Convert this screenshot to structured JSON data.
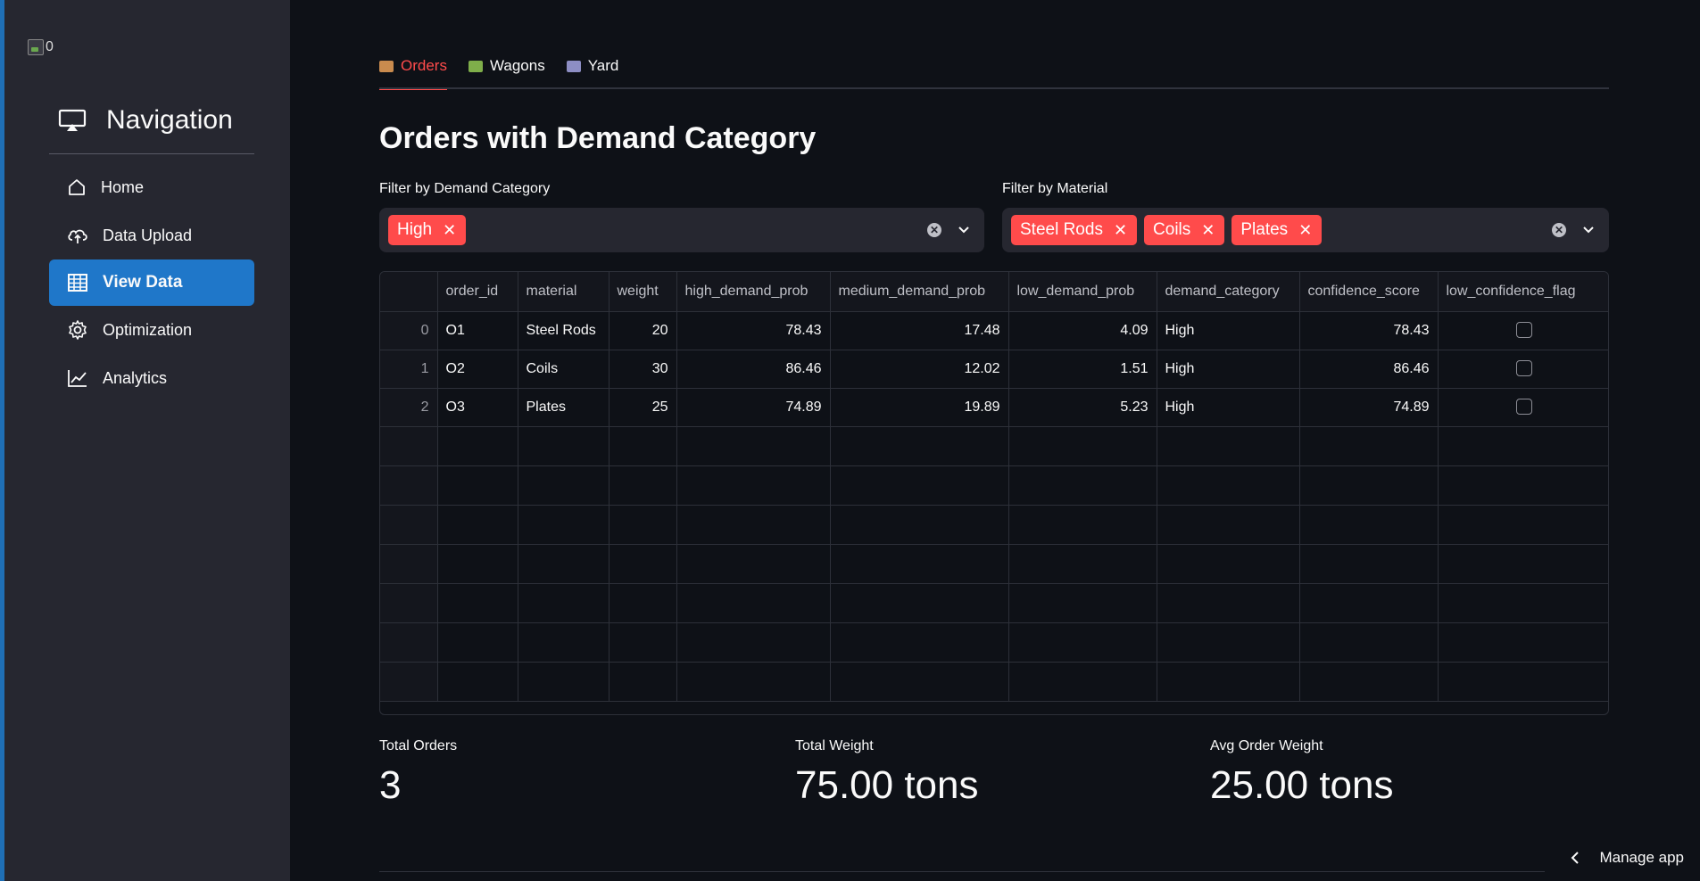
{
  "sidebar": {
    "logo_alt": "0",
    "nav_title": "Navigation",
    "items": [
      {
        "label": "Home",
        "icon": "home-icon"
      },
      {
        "label": "Data Upload",
        "icon": "cloud-upload-icon"
      },
      {
        "label": "View Data",
        "icon": "table-icon",
        "active": true
      },
      {
        "label": "Optimization",
        "icon": "gear-icon"
      },
      {
        "label": "Analytics",
        "icon": "chart-line-icon"
      }
    ]
  },
  "tabs": [
    {
      "label": "Orders",
      "icon": "package-icon",
      "active": true
    },
    {
      "label": "Wagons",
      "icon": "wagon-icon"
    },
    {
      "label": "Yard",
      "icon": "factory-icon"
    }
  ],
  "page_title": "Orders with Demand Category",
  "filters": {
    "demand": {
      "label": "Filter by Demand Category",
      "chips": [
        "High"
      ]
    },
    "material": {
      "label": "Filter by Material",
      "chips": [
        "Steel Rods",
        "Coils",
        "Plates"
      ]
    }
  },
  "table": {
    "columns": [
      "order_id",
      "material",
      "weight",
      "high_demand_prob",
      "medium_demand_prob",
      "low_demand_prob",
      "demand_category",
      "confidence_score",
      "low_confidence_flag"
    ],
    "rows": [
      {
        "index": "0",
        "order_id": "O1",
        "material": "Steel Rods",
        "weight": "20",
        "high_demand_prob": "78.43",
        "medium_demand_prob": "17.48",
        "low_demand_prob": "4.09",
        "demand_category": "High",
        "confidence_score": "78.43",
        "low_confidence_flag": false
      },
      {
        "index": "1",
        "order_id": "O2",
        "material": "Coils",
        "weight": "30",
        "high_demand_prob": "86.46",
        "medium_demand_prob": "12.02",
        "low_demand_prob": "1.51",
        "demand_category": "High",
        "confidence_score": "86.46",
        "low_confidence_flag": false
      },
      {
        "index": "2",
        "order_id": "O3",
        "material": "Plates",
        "weight": "25",
        "high_demand_prob": "74.89",
        "medium_demand_prob": "19.89",
        "low_demand_prob": "5.23",
        "demand_category": "High",
        "confidence_score": "74.89",
        "low_confidence_flag": false
      }
    ]
  },
  "metrics": [
    {
      "label": "Total Orders",
      "value": "3"
    },
    {
      "label": "Total Weight",
      "value": "75.00 tons"
    },
    {
      "label": "Avg Order Weight",
      "value": "25.00 tons"
    }
  ],
  "manage_app": "Manage app",
  "colors": {
    "accent": "#ff4b4b",
    "active_nav": "#1f77c9",
    "sidebar_bg": "#262730",
    "main_bg": "#0e1117"
  }
}
